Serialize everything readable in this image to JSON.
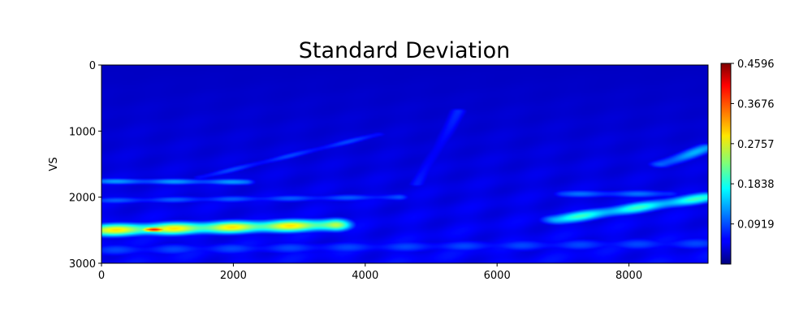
{
  "chart_data": {
    "type": "heatmap",
    "title": "Standard Deviation",
    "xlabel": "",
    "ylabel": "VS",
    "xlim": [
      0,
      9200
    ],
    "ylim": [
      3000,
      0
    ],
    "y_axis_inverted": true,
    "x_ticks": [
      0,
      2000,
      4000,
      6000,
      8000
    ],
    "x_tick_labels": [
      "0",
      "2000",
      "4000",
      "6000",
      "8000"
    ],
    "y_ticks": [
      0,
      1000,
      2000,
      3000
    ],
    "y_tick_labels": [
      "0",
      "1000",
      "2000",
      "3000"
    ],
    "colormap": "jet",
    "colorbar": {
      "min": 0.0,
      "max": 0.4596,
      "ticks": [
        0.0919,
        0.1838,
        0.2757,
        0.3676,
        0.4596
      ],
      "tick_labels": [
        "0.0919",
        "0.1838",
        "0.2757",
        "0.3676",
        "0.4596"
      ],
      "placement": "right"
    },
    "background_value": 0.03,
    "features": [
      {
        "name": "bright-layer-left",
        "from": [
          0,
          2500
        ],
        "to": [
          3500,
          2420
        ],
        "halfwidth": 70,
        "peak": 0.3
      },
      {
        "name": "hotspot",
        "at": [
          800,
          2490
        ],
        "rx": 250,
        "ry": 45,
        "peak": 0.4
      },
      {
        "name": "reflector-left-1760",
        "from": [
          0,
          1760
        ],
        "to": [
          2200,
          1770
        ],
        "halfwidth": 40,
        "peak": 0.13
      },
      {
        "name": "reflector-2050",
        "from": [
          0,
          2050
        ],
        "to": [
          4500,
          2000
        ],
        "halfwidth": 45,
        "peak": 0.1
      },
      {
        "name": "arc-reflector",
        "from": [
          1500,
          1700
        ],
        "to": [
          4200,
          1050
        ],
        "halfwidth": 35,
        "peak": 0.09
      },
      {
        "name": "diagonal-center",
        "from": [
          4800,
          1800
        ],
        "to": [
          5400,
          700
        ],
        "halfwidth": 40,
        "peak": 0.08
      },
      {
        "name": "bright-layer-right",
        "from": [
          6900,
          2340
        ],
        "to": [
          9200,
          2000
        ],
        "halfwidth": 60,
        "peak": 0.2
      },
      {
        "name": "right-edge-upper",
        "from": [
          8500,
          1500
        ],
        "to": [
          9200,
          1250
        ],
        "halfwidth": 50,
        "peak": 0.14
      },
      {
        "name": "right-band-1900",
        "from": [
          7000,
          1950
        ],
        "to": [
          8600,
          1950
        ],
        "halfwidth": 50,
        "peak": 0.11
      },
      {
        "name": "bottom-band",
        "from": [
          0,
          2800
        ],
        "to": [
          9200,
          2700
        ],
        "halfwidth": 80,
        "peak": 0.09
      }
    ]
  }
}
